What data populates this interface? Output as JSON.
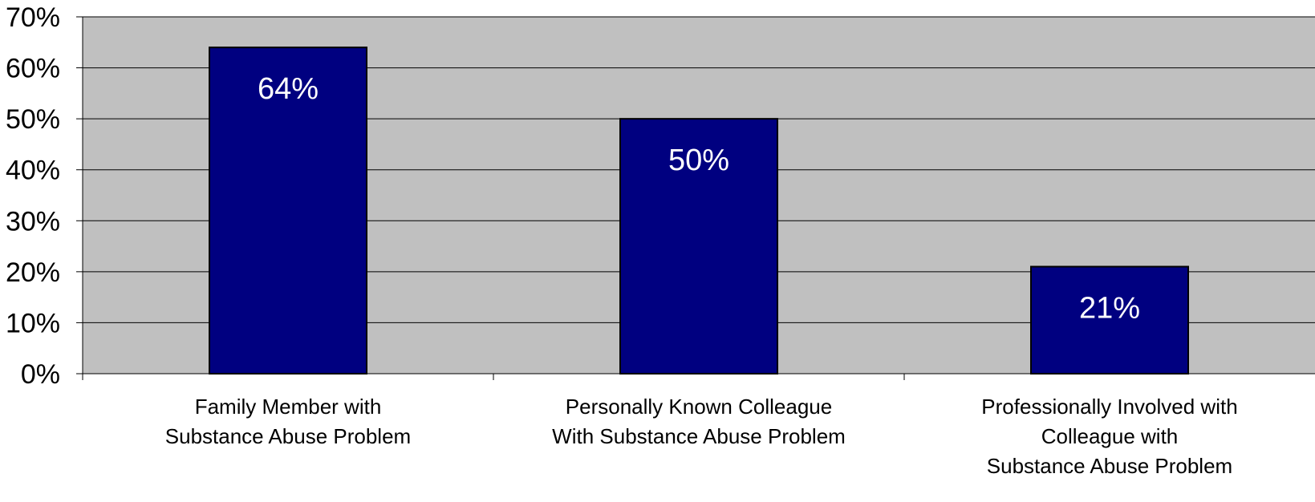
{
  "chart_data": {
    "type": "bar",
    "categories": [
      [
        "Family Member with",
        "Substance Abuse Problem"
      ],
      [
        "Personally Known Colleague",
        "With Substance Abuse Problem"
      ],
      [
        "Professionally Involved with",
        "Colleague with",
        "Substance Abuse Problem"
      ]
    ],
    "values": [
      64,
      50,
      21
    ],
    "data_labels": [
      "64%",
      "50%",
      "21%"
    ],
    "y_ticks": [
      "0%",
      "10%",
      "20%",
      "30%",
      "40%",
      "50%",
      "60%",
      "70%"
    ],
    "ylim": [
      0,
      70
    ],
    "grid": true,
    "colors": {
      "bar": "#000080",
      "plot_background": "#C0C0C0",
      "gridline": "#000000",
      "data_label": "#FFFFFF"
    }
  }
}
